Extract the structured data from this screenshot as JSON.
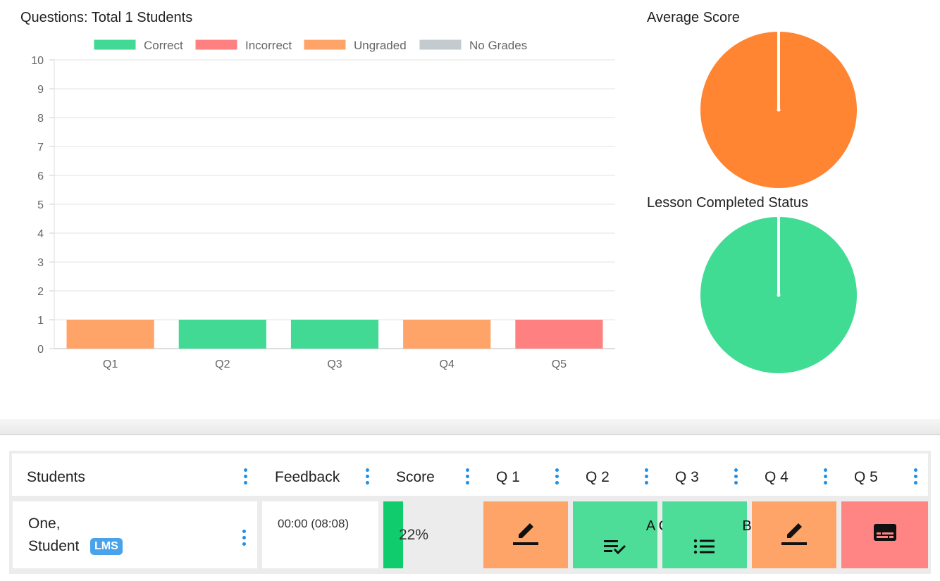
{
  "bar_chart": {
    "title": "Questions: Total 1 Students",
    "legend": [
      {
        "label": "Correct",
        "color": "#41d994"
      },
      {
        "label": "Incorrect",
        "color": "#ff8080"
      },
      {
        "label": "Ungraded",
        "color": "#ffa468"
      },
      {
        "label": "No Grades",
        "color": "#c3cbcf"
      }
    ]
  },
  "chart_data": [
    {
      "type": "bar",
      "title": "Questions: Total 1 Students",
      "categories": [
        "Q1",
        "Q2",
        "Q3",
        "Q4",
        "Q5"
      ],
      "values": [
        1,
        1,
        1,
        1,
        1
      ],
      "bar_status": [
        "Ungraded",
        "Correct",
        "Correct",
        "Ungraded",
        "Incorrect"
      ],
      "bar_colors": [
        "#ffa468",
        "#41d994",
        "#41d994",
        "#ffa468",
        "#ff8080"
      ],
      "ylim": [
        0,
        10
      ],
      "yticks": [
        0,
        1,
        2,
        3,
        4,
        5,
        6,
        7,
        8,
        9,
        10
      ],
      "grid": true,
      "legend_position": "top"
    },
    {
      "type": "pie",
      "title": "Average Score",
      "values": [
        100
      ],
      "colors": [
        "#ff8533"
      ]
    },
    {
      "type": "pie",
      "title": "Lesson Completed Status",
      "values": [
        100
      ],
      "colors": [
        "#41dc94"
      ]
    }
  ],
  "pies": {
    "average_title": "Average Score",
    "completed_title": "Lesson Completed Status"
  },
  "grid": {
    "headers": {
      "students": "Students",
      "feedback": "Feedback",
      "score": "Score",
      "q1": "Q 1",
      "q2": "Q 2",
      "q3": "Q 3",
      "q4": "Q 4",
      "q5": "Q 5"
    },
    "row": {
      "last_name": "One",
      "comma": ",",
      "first_name": "Student",
      "badge": "LMS",
      "feedback": "00:00 (08:08)",
      "score_text": "22%",
      "score_fraction": 0.22,
      "q1": {
        "status": "ungraded",
        "icon": "pencil-icon",
        "color": "#ffa468"
      },
      "q2": {
        "status": "correct",
        "answer": "A C",
        "icon": "checklist-icon",
        "color": "#4ddd98"
      },
      "q3": {
        "status": "correct",
        "answer": "B",
        "icon": "list-icon",
        "color": "#4ddd98"
      },
      "q4": {
        "status": "ungraded",
        "icon": "pencil-icon",
        "color": "#ffa468"
      },
      "q5": {
        "status": "incorrect",
        "icon": "subtitles-icon",
        "color": "#ff8585"
      }
    }
  }
}
